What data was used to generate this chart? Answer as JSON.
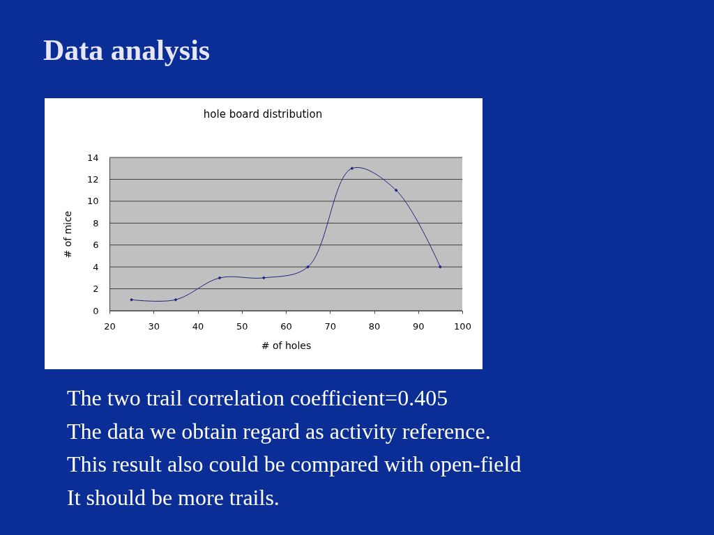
{
  "chart_data": {
    "type": "line",
    "title": "Data analysis",
    "subtitle": "hole board distribution",
    "xlabel": "# of holes",
    "ylabel": "# of mice",
    "x": [
      25,
      35,
      45,
      55,
      65,
      75,
      85,
      95
    ],
    "series": [
      {
        "color": "#202080",
        "values": [
          1,
          1,
          3,
          3,
          4,
          13,
          11,
          4
        ]
      }
    ],
    "xlim": [
      20,
      100
    ],
    "xticks": [
      20,
      30,
      40,
      50,
      60,
      70,
      80,
      90,
      100
    ],
    "ylim": [
      0,
      14
    ],
    "yticks": [
      0,
      2,
      4,
      6,
      8,
      10,
      12,
      14
    ],
    "grid": "y",
    "marker": "diamond",
    "line_style": "solid",
    "annotations": [
      "The two trail   correlation coefficient=0.405",
      "The data we obtain regard as activity reference.",
      "This result also could be compared with open-field",
      "It should be more trails."
    ]
  }
}
